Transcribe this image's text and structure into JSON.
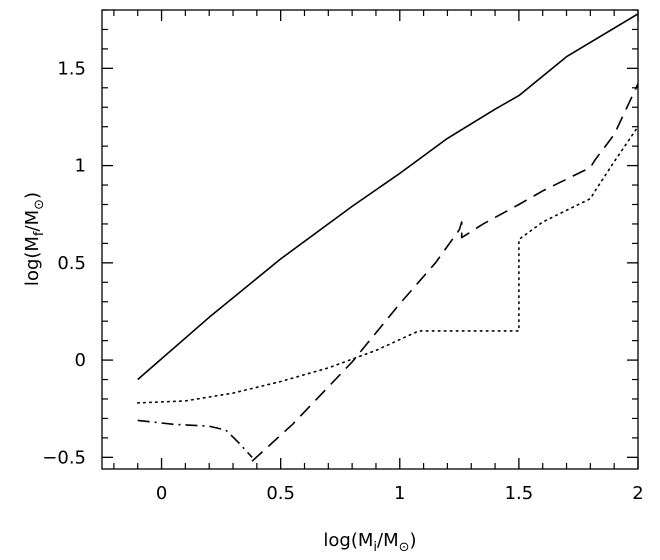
{
  "chart_data": {
    "type": "line",
    "title": "",
    "xlabel": {
      "prefix": "log(M",
      "subscript": "i",
      "middle": "/M",
      "symbol": "⊙",
      "suffix": ")"
    },
    "ylabel": {
      "prefix": "log(M",
      "subscript": "f",
      "middle": "/M",
      "symbol": "⊙",
      "suffix": ")"
    },
    "xlim": [
      -0.25,
      2.0
    ],
    "ylim": [
      -0.56,
      1.8
    ],
    "xticks": [
      {
        "value": 0,
        "label": "0"
      },
      {
        "value": 0.5,
        "label": "0.5"
      },
      {
        "value": 1,
        "label": "1"
      },
      {
        "value": 1.5,
        "label": "1.5"
      },
      {
        "value": 2,
        "label": "2"
      }
    ],
    "yticks": [
      {
        "value": -0.5,
        "label": "−0.5"
      },
      {
        "value": 0,
        "label": "0"
      },
      {
        "value": 0.5,
        "label": "0.5"
      },
      {
        "value": 1,
        "label": "1"
      },
      {
        "value": 1.5,
        "label": "1.5"
      }
    ],
    "minor_x_step": 0.1,
    "minor_y_step": 0.1,
    "series": [
      {
        "name": "solid",
        "style": "solid",
        "points": [
          [
            -0.1,
            -0.1
          ],
          [
            0.2,
            0.22
          ],
          [
            0.5,
            0.52
          ],
          [
            0.8,
            0.79
          ],
          [
            1.0,
            0.96
          ],
          [
            1.2,
            1.14
          ],
          [
            1.4,
            1.29
          ],
          [
            1.5,
            1.36
          ],
          [
            1.7,
            1.56
          ],
          [
            2.0,
            1.78
          ]
        ]
      },
      {
        "name": "dash-dot",
        "style": "dashdot",
        "points": [
          [
            -0.1,
            -0.31
          ],
          [
            0.05,
            -0.33
          ],
          [
            0.2,
            -0.34
          ],
          [
            0.27,
            -0.36
          ],
          [
            0.32,
            -0.42
          ],
          [
            0.38,
            -0.5
          ]
        ]
      },
      {
        "name": "dashed",
        "style": "dashed",
        "points": [
          [
            0.38,
            -0.52
          ],
          [
            0.55,
            -0.33
          ],
          [
            0.8,
            -0.01
          ],
          [
            1.0,
            0.29
          ],
          [
            1.15,
            0.5
          ],
          [
            1.25,
            0.67
          ],
          [
            1.26,
            0.71
          ],
          [
            1.26,
            0.63
          ],
          [
            1.35,
            0.7
          ],
          [
            1.5,
            0.8
          ],
          [
            1.6,
            0.87
          ],
          [
            1.7,
            0.93
          ],
          [
            1.8,
            0.99
          ],
          [
            1.82,
            1.03
          ],
          [
            1.9,
            1.16
          ],
          [
            2.0,
            1.42
          ]
        ]
      },
      {
        "name": "dotted",
        "style": "dotted",
        "points": [
          [
            -0.1,
            -0.22
          ],
          [
            0.1,
            -0.21
          ],
          [
            0.3,
            -0.17
          ],
          [
            0.5,
            -0.11
          ],
          [
            0.7,
            -0.04
          ],
          [
            0.9,
            0.05
          ],
          [
            1.08,
            0.15
          ],
          [
            1.5,
            0.15
          ],
          [
            1.5,
            0.62
          ],
          [
            1.6,
            0.71
          ],
          [
            1.7,
            0.77
          ],
          [
            1.8,
            0.83
          ],
          [
            1.82,
            0.87
          ],
          [
            1.9,
            1.02
          ],
          [
            2.0,
            1.2
          ]
        ]
      }
    ]
  }
}
